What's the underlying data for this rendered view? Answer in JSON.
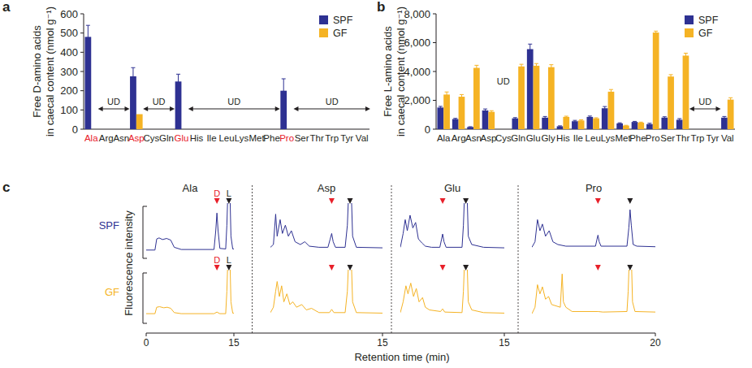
{
  "chart_data": [
    {
      "type": "bar",
      "panel": "a",
      "ylabel": [
        "Free D-amino acids",
        "in caecal content (nmol g⁻¹)"
      ],
      "categories": [
        "Ala",
        "Arg",
        "Asn",
        "Asp",
        "Cys",
        "Gln",
        "Glu",
        "His",
        "Ile",
        "Leu",
        "Lys",
        "Met",
        "Phe",
        "Pro",
        "Ser",
        "Thr",
        "Trp",
        "Tyr",
        "Val"
      ],
      "category_colors": [
        "#e8202a",
        "#231f20",
        "#231f20",
        "#e8202a",
        "#231f20",
        "#231f20",
        "#e8202a",
        "#231f20",
        "#231f20",
        "#231f20",
        "#231f20",
        "#231f20",
        "#231f20",
        "#e8202a",
        "#231f20",
        "#231f20",
        "#231f20",
        "#231f20",
        "#231f20"
      ],
      "ylim": [
        0,
        600
      ],
      "yticks": [
        0,
        100,
        200,
        300,
        400,
        500,
        600
      ],
      "legend": "upper right",
      "series": [
        {
          "name": "SPF",
          "color": "#2e3192",
          "values": [
            480,
            null,
            null,
            275,
            null,
            null,
            248,
            null,
            null,
            null,
            null,
            null,
            null,
            200,
            null,
            null,
            null,
            null,
            null
          ],
          "errors": [
            60,
            null,
            null,
            45,
            null,
            null,
            38,
            null,
            null,
            null,
            null,
            null,
            null,
            62,
            null,
            null,
            null,
            null,
            null
          ]
        },
        {
          "name": "GF",
          "color": "#f5b324",
          "values": [
            null,
            null,
            null,
            78,
            null,
            null,
            null,
            null,
            null,
            null,
            null,
            null,
            null,
            null,
            null,
            null,
            null,
            null,
            null
          ]
        }
      ],
      "annotations": [
        {
          "text": "UD",
          "from": "Arg",
          "to": "Asn"
        },
        {
          "text": "UD",
          "from": "Cys",
          "to": "Gln"
        },
        {
          "text": "UD",
          "from": "His",
          "to": "Phe"
        },
        {
          "text": "UD",
          "from": "Ser",
          "to": "Val"
        }
      ]
    },
    {
      "type": "bar",
      "panel": "b",
      "ylabel": [
        "Free L-amino acids",
        "in caecal content (nmol g⁻¹)"
      ],
      "categories": [
        "Ala",
        "Arg",
        "Asn",
        "Asp",
        "Cys",
        "Gln",
        "Glu",
        "Gly",
        "His",
        "Ile",
        "Leu",
        "Lys",
        "Met",
        "Phe",
        "Pro",
        "Ser",
        "Thr",
        "Trp",
        "Tyr",
        "Val"
      ],
      "ylim": [
        0,
        8000
      ],
      "yticks": [
        0,
        {
          "value": 2000,
          "label": "2,000"
        },
        {
          "value": 4000,
          "label": "4,000"
        },
        {
          "value": 6000,
          "label": "6,000"
        },
        {
          "value": 8000,
          "label": "8,000"
        }
      ],
      "legend": "upper right",
      "series": [
        {
          "name": "SPF",
          "color": "#2e3192",
          "values": [
            1500,
            700,
            150,
            1300,
            null,
            750,
            5550,
            800,
            200,
            550,
            850,
            1450,
            400,
            500,
            350,
            800,
            650,
            null,
            null,
            800
          ],
          "errors": [
            80,
            50,
            20,
            100,
            null,
            50,
            350,
            80,
            30,
            60,
            60,
            120,
            40,
            40,
            60,
            60,
            80,
            null,
            null,
            80
          ]
        },
        {
          "name": "GF",
          "color": "#f5b324",
          "values": [
            2400,
            2250,
            4250,
            1200,
            null,
            4350,
            4400,
            4300,
            850,
            600,
            750,
            2600,
            250,
            450,
            6700,
            3650,
            5100,
            null,
            null,
            2050
          ],
          "errors": [
            180,
            150,
            180,
            80,
            null,
            150,
            150,
            170,
            50,
            50,
            40,
            150,
            20,
            40,
            100,
            130,
            170,
            null,
            null,
            130
          ]
        }
      ],
      "annotations": [
        {
          "text": "UD",
          "from": "Cys",
          "to": "Cys"
        },
        {
          "text": "UD",
          "from": "Trp",
          "to": "Tyr"
        }
      ]
    },
    {
      "type": "line",
      "panel": "c",
      "ylabel": "Fluorescence intensity",
      "xlabel": "Retention time (min)",
      "ylim": [
        0,
        100
      ],
      "tick_labels": "x",
      "rows": [
        {
          "name": "SPF",
          "color": "#2e3192"
        },
        {
          "name": "GF",
          "color": "#f5b324"
        }
      ],
      "columns": [
        {
          "title": "Ala",
          "xlim": [
            0,
            15
          ],
          "xticks": [
            0,
            15
          ],
          "series": [
            {
              "x": [
                0,
                1.5,
                1.8,
                2.2,
                2.8,
                3.5,
                4.2,
                4.8,
                6,
                11.6,
                11.9,
                12.1,
                12.3,
                12.6,
                13.6,
                13.8,
                14,
                14.3,
                14.5,
                14.8,
                15
              ],
              "values": [
                15,
                15,
                35,
                37,
                34,
                36,
                33,
                20,
                16,
                16,
                50,
                82,
                50,
                18,
                17,
                60,
                130,
                130,
                40,
                17,
                17
              ],
              "markers": [
                {
                  "x": 12.1,
                  "label": "D",
                  "color": "#e8202a"
                },
                {
                  "x": 14.15,
                  "label": "L",
                  "color": "#231f20"
                }
              ]
            },
            {
              "x": [
                0,
                1.5,
                1.8,
                2.3,
                3,
                3.6,
                4.2,
                4.8,
                6,
                11.6,
                12.1,
                12.6,
                13.6,
                13.8,
                14,
                14.3,
                14.5,
                14.8,
                15
              ],
              "values": [
                18,
                18,
                30,
                31,
                29,
                30,
                28,
                20,
                18,
                18,
                21,
                18,
                18,
                60,
                130,
                130,
                40,
                19,
                19
              ],
              "markers": [
                {
                  "x": 12.1,
                  "label": "D",
                  "color": "#e8202a"
                },
                {
                  "x": 14.15,
                  "label": "L",
                  "color": "#231f20"
                }
              ]
            }
          ]
        },
        {
          "title": "Asp",
          "xlim": [
            0,
            15
          ],
          "xticks": [
            15
          ],
          "series": [
            {
              "x": [
                0,
                0.4,
                0.7,
                0.9,
                1.3,
                1.6,
                2,
                2.4,
                2.8,
                3.3,
                4,
                4.6,
                5.2,
                6.5,
                7.7,
                8,
                8.2,
                8.4,
                8.7,
                10,
                10.3,
                10.5,
                10.8,
                11,
                11.5,
                15
              ],
              "values": [
                20,
                25,
                80,
                40,
                70,
                45,
                60,
                40,
                50,
                30,
                25,
                30,
                22,
                20,
                20,
                35,
                45,
                30,
                20,
                20,
                60,
                130,
                130,
                40,
                20,
                19
              ],
              "markers": [
                {
                  "x": 8.2,
                  "color": "#e8202a"
                },
                {
                  "x": 10.65,
                  "color": "#231f20"
                }
              ]
            },
            {
              "x": [
                0,
                0.4,
                0.7,
                0.9,
                1.2,
                1.5,
                1.8,
                2.2,
                2.6,
                3,
                3.5,
                4.2,
                4.8,
                5.5,
                6.5,
                7.9,
                8.2,
                8.5,
                10,
                10.3,
                10.5,
                10.8,
                11,
                11.5,
                15
              ],
              "values": [
                20,
                30,
                60,
                78,
                50,
                70,
                40,
                55,
                35,
                40,
                30,
                35,
                25,
                28,
                20,
                20,
                26,
                20,
                20,
                60,
                130,
                130,
                40,
                20,
                19
              ],
              "markers": [
                {
                  "x": 8.2,
                  "color": "#e8202a"
                },
                {
                  "x": 10.65,
                  "color": "#231f20"
                }
              ]
            }
          ]
        },
        {
          "title": "Glu",
          "xlim": [
            0,
            15
          ],
          "xticks": [
            15
          ],
          "series": [
            {
              "x": [
                0,
                0.4,
                0.7,
                1,
                1.4,
                1.8,
                2.2,
                2.6,
                3.1,
                3.6,
                4.5,
                5.7,
                5.95,
                6.1,
                6.3,
                6.6,
                8.9,
                9.1,
                9.3,
                9.6,
                9.8,
                10.3,
                12,
                15
              ],
              "values": [
                20,
                45,
                70,
                50,
                78,
                55,
                65,
                35,
                28,
                22,
                20,
                20,
                35,
                44,
                30,
                20,
                20,
                60,
                130,
                130,
                40,
                25,
                20,
                19
              ],
              "markers": [
                {
                  "x": 6.1,
                  "color": "#e8202a"
                },
                {
                  "x": 9.45,
                  "color": "#231f20"
                }
              ]
            },
            {
              "x": [
                0,
                0.4,
                0.8,
                1.1,
                1.5,
                1.9,
                2.3,
                2.7,
                3.2,
                3.6,
                4.2,
                5.8,
                6.1,
                6.4,
                8.9,
                9.1,
                9.3,
                9.6,
                9.8,
                10.3,
                12,
                15
              ],
              "values": [
                20,
                40,
                70,
                55,
                75,
                50,
                65,
                40,
                48,
                30,
                25,
                22,
                27,
                21,
                20,
                60,
                130,
                130,
                40,
                25,
                20,
                19
              ],
              "markers": [
                {
                  "x": 6.1,
                  "color": "#e8202a"
                },
                {
                  "x": 9.45,
                  "color": "#231f20"
                }
              ]
            }
          ]
        },
        {
          "title": "Pro",
          "xlim": [
            0,
            20
          ],
          "xticks": [
            20
          ],
          "series": [
            {
              "x": [
                0,
                0.5,
                0.9,
                1.3,
                1.7,
                2.2,
                2.8,
                3.4,
                4.2,
                5.5,
                10.3,
                10.55,
                10.7,
                10.9,
                11.2,
                15.4,
                15.7,
                15.9,
                16.1,
                16.4,
                17,
                20
              ],
              "values": [
                20,
                30,
                70,
                50,
                62,
                40,
                50,
                30,
                25,
                22,
                22,
                35,
                42,
                30,
                22,
                22,
                55,
                88,
                60,
                25,
                22,
                21
              ],
              "markers": [
                {
                  "x": 10.7,
                  "color": "#e8202a"
                },
                {
                  "x": 15.9,
                  "color": "#231f20"
                }
              ]
            },
            {
              "x": [
                0,
                0.5,
                0.9,
                1.3,
                1.7,
                2.2,
                2.7,
                3.2,
                4.6,
                4.9,
                5.1,
                5.5,
                6.5,
                10.7,
                11.5,
                15.4,
                15.6,
                15.8,
                16.1,
                16.3,
                16.7,
                20
              ],
              "values": [
                18,
                30,
                72,
                55,
                68,
                45,
                50,
                35,
                30,
                92,
                40,
                30,
                22,
                22,
                21,
                22,
                60,
                130,
                130,
                40,
                22,
                21
              ],
              "markers": [
                {
                  "x": 10.7,
                  "color": "#e8202a"
                },
                {
                  "x": 15.9,
                  "color": "#231f20"
                }
              ]
            }
          ]
        }
      ]
    }
  ]
}
